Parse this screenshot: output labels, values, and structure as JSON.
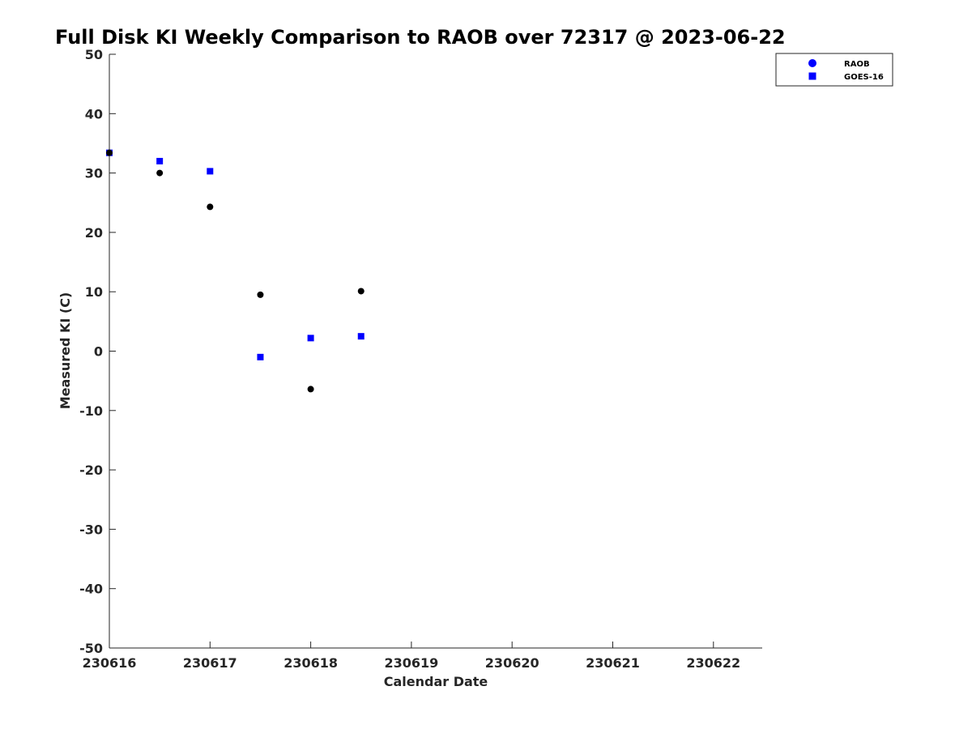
{
  "chart_data": {
    "type": "scatter",
    "title": "Full Disk KI Weekly Comparison to RAOB over 72317 @ 2023-06-22",
    "xlabel": "Calendar Date",
    "ylabel": "Measured KI (C)",
    "x_ticks": [
      "230616",
      "230617",
      "230618",
      "230619",
      "230620",
      "230621",
      "230622"
    ],
    "xlim": [
      0,
      6.5
    ],
    "ylim": [
      -50,
      50
    ],
    "y_ticks": [
      -50,
      -40,
      -30,
      -20,
      -10,
      0,
      10,
      20,
      30,
      40,
      50
    ],
    "grid": false,
    "legend_position": "top-right",
    "series": [
      {
        "name": "RAOB",
        "marker": "circle",
        "color": "#000000",
        "legend_color": "#0000ff",
        "points": [
          {
            "x": 0.0,
            "y": 33.4
          },
          {
            "x": 0.5,
            "y": 30.0
          },
          {
            "x": 1.0,
            "y": 24.3
          },
          {
            "x": 1.5,
            "y": 9.5
          },
          {
            "x": 2.0,
            "y": -6.4
          },
          {
            "x": 2.5,
            "y": 10.1
          }
        ]
      },
      {
        "name": "GOES-16",
        "marker": "square",
        "color": "#0000ff",
        "legend_color": "#0000ff",
        "points": [
          {
            "x": 0.0,
            "y": 33.4
          },
          {
            "x": 0.5,
            "y": 32.0
          },
          {
            "x": 1.0,
            "y": 30.3
          },
          {
            "x": 1.5,
            "y": -1.0
          },
          {
            "x": 2.0,
            "y": 2.2
          },
          {
            "x": 2.5,
            "y": 2.5
          }
        ]
      }
    ]
  }
}
